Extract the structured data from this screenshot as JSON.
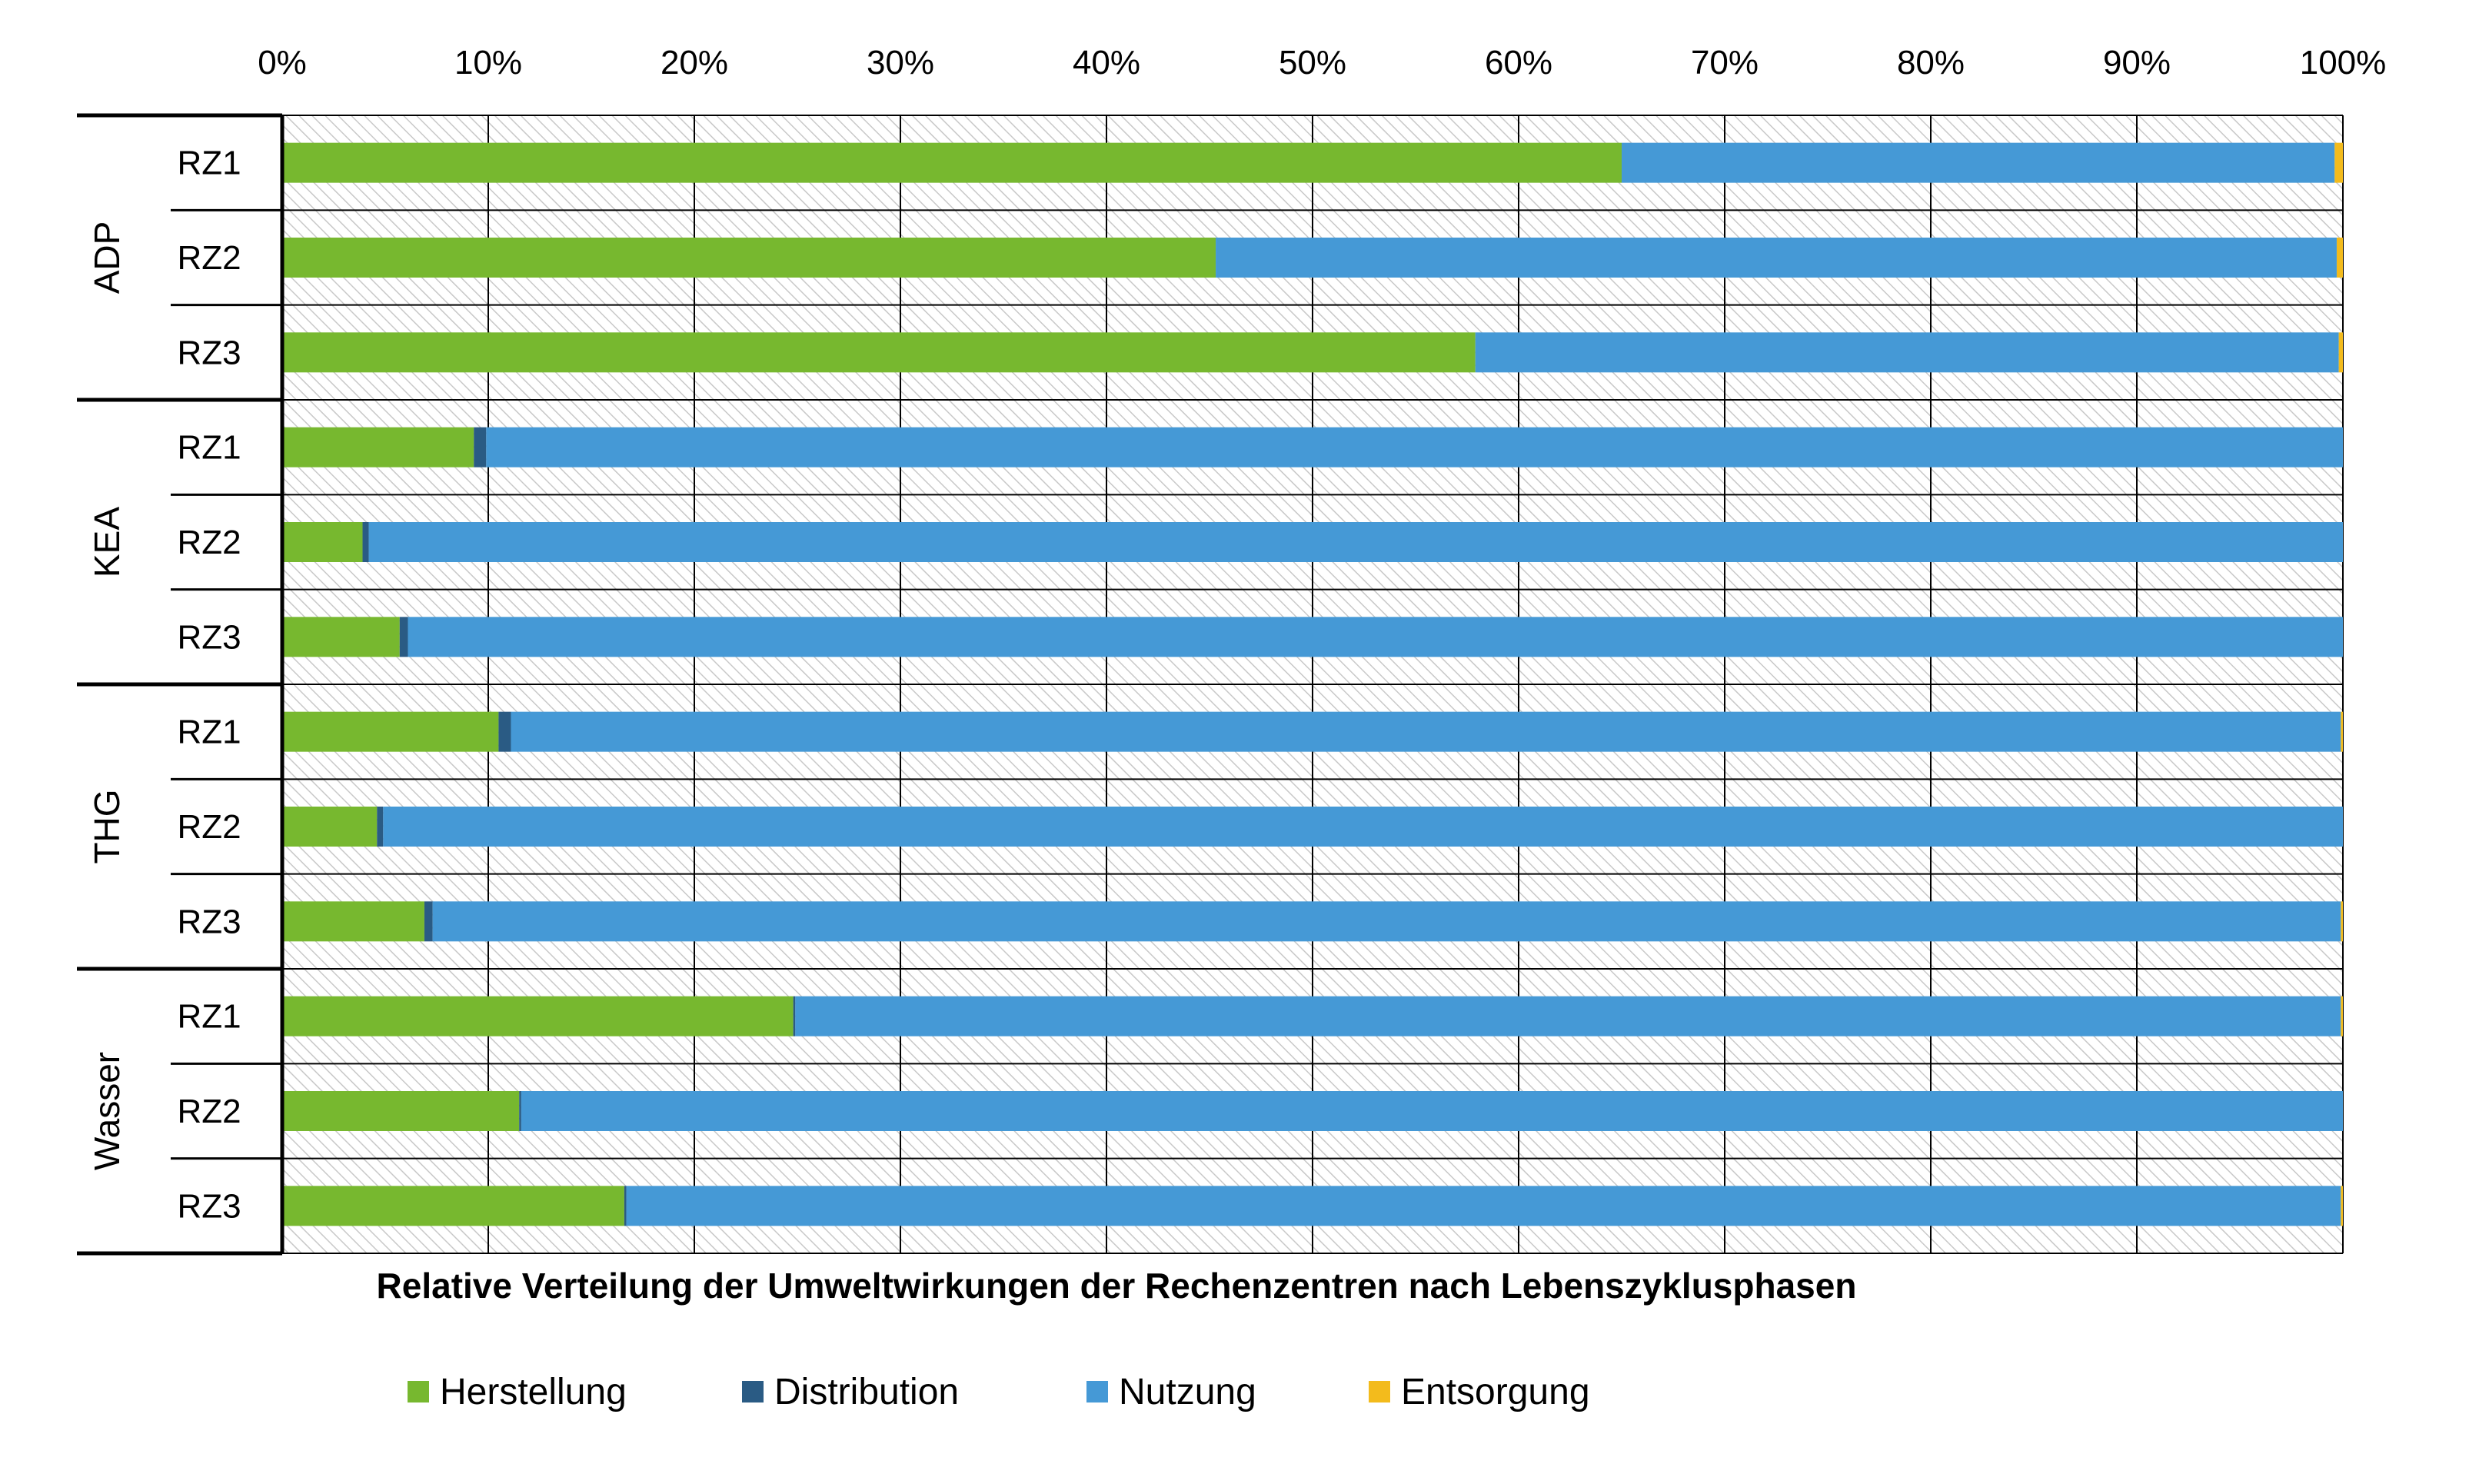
{
  "chart_data": {
    "type": "bar",
    "orientation": "horizontal",
    "stacked": true,
    "title": "Relative Verteilung der Umweltwirkungen der Rechenzentren nach Lebenszyklusphasen",
    "xticks": [
      "0%",
      "10%",
      "20%",
      "30%",
      "40%",
      "50%",
      "60%",
      "70%",
      "80%",
      "90%",
      "100%"
    ],
    "xlim": [
      0,
      100
    ],
    "x_axis_position": "top",
    "grid": true,
    "legend_position": "bottom",
    "groups": [
      {
        "name": "ADP",
        "rows": [
          "RZ1",
          "RZ2",
          "RZ3"
        ]
      },
      {
        "name": "KEA",
        "rows": [
          "RZ1",
          "RZ2",
          "RZ3"
        ]
      },
      {
        "name": "THG",
        "rows": [
          "RZ1",
          "RZ2",
          "RZ3"
        ]
      },
      {
        "name": "Wasser",
        "rows": [
          "RZ1",
          "RZ2",
          "RZ3"
        ]
      }
    ],
    "series": [
      {
        "name": "Herstellung",
        "color": "#77b82f",
        "values": [
          65.0,
          45.3,
          57.9,
          9.3,
          3.9,
          5.7,
          10.5,
          4.6,
          6.9,
          24.8,
          11.5,
          16.6
        ]
      },
      {
        "name": "Distribution",
        "color": "#2a5b84",
        "values": [
          0.0,
          0.0,
          0.0,
          0.6,
          0.3,
          0.4,
          0.6,
          0.3,
          0.4,
          0.1,
          0.1,
          0.1
        ]
      },
      {
        "name": "Nutzung",
        "color": "#4599d6",
        "values": [
          34.6,
          54.4,
          41.9,
          90.1,
          95.8,
          93.9,
          88.8,
          95.1,
          92.6,
          75.0,
          88.4,
          83.2
        ]
      },
      {
        "name": "Entsorgung",
        "color": "#f3bb1c",
        "values": [
          0.4,
          0.3,
          0.2,
          0.0,
          0.0,
          0.0,
          0.1,
          0.0,
          0.1,
          0.1,
          0.0,
          0.1
        ]
      }
    ]
  }
}
